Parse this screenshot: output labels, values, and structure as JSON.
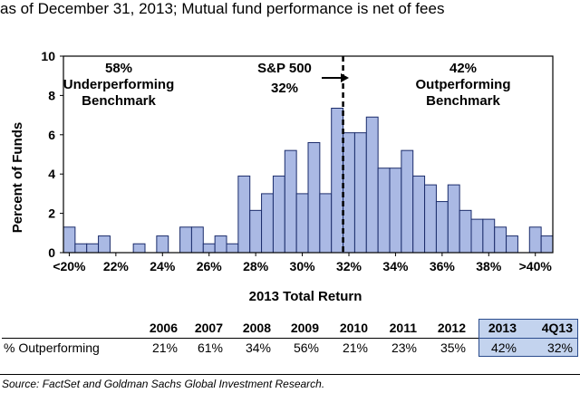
{
  "subtitle": "as of December 31, 2013; Mutual fund performance is net of fees",
  "chart_data": {
    "type": "bar",
    "xlabel": "2013 Total Return",
    "ylabel": "Percent of Funds",
    "ylim": [
      0,
      10
    ],
    "yticks": [
      "0",
      "2",
      "4",
      "6",
      "8",
      "10"
    ],
    "xtick_labels": [
      "<20%",
      "22%",
      "24%",
      "26%",
      "28%",
      "30%",
      "32%",
      "34%",
      "36%",
      "38%",
      ">40%"
    ],
    "values": [
      1.3,
      0.45,
      0.45,
      0.85,
      0,
      0,
      0.45,
      0,
      0.85,
      0,
      1.3,
      1.3,
      0.45,
      0.85,
      0.45,
      3.9,
      2.15,
      3.0,
      3.9,
      5.2,
      3.0,
      5.6,
      3.0,
      7.35,
      6.1,
      6.1,
      6.9,
      4.3,
      4.3,
      5.2,
      3.9,
      3.45,
      2.6,
      3.45,
      2.15,
      1.7,
      1.7,
      1.3,
      0.85,
      0,
      1.3,
      0.85
    ],
    "colors": {
      "bar": "#aab9e4",
      "bar_edge": "#1b2c6b",
      "frame": "#000000"
    },
    "annotations": {
      "left_pct": "58%",
      "left_line1": "Underperforming",
      "left_line2": "Benchmark",
      "center_line1": "S&P 500",
      "center_line2": "32%",
      "right_pct": "42%",
      "right_line1": "Outperforming",
      "right_line2": "Benchmark"
    },
    "benchmark_bin": 24
  },
  "table": {
    "years": [
      "2006",
      "2007",
      "2008",
      "2009",
      "2010",
      "2011",
      "2012",
      "2013",
      "4Q13"
    ],
    "row_label": "% Outperforming",
    "values": [
      "21%",
      "61%",
      "34%",
      "56%",
      "21%",
      "23%",
      "35%",
      "42%",
      "32%"
    ]
  },
  "source": "Source: FactSet and Goldman Sachs Global Investment Research."
}
